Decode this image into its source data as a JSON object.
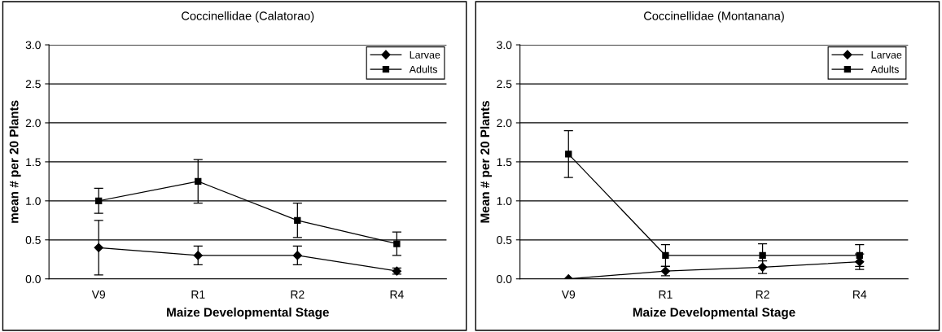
{
  "chart_data": [
    {
      "type": "line",
      "title": "Coccinellidae (Calatorao)",
      "xlabel": "Maize Developmental Stage",
      "ylabel": "mean # per 20 Plants",
      "categories": [
        "V9",
        "R1",
        "R2",
        "R4"
      ],
      "ylim": [
        0,
        3
      ],
      "yticks": [
        {
          "value": 0,
          "label": "0.0"
        },
        {
          "value": 0.5,
          "label": "0.5"
        },
        {
          "value": 1,
          "label": "1.0"
        },
        {
          "value": 1.5,
          "label": "1.5"
        },
        {
          "value": 2,
          "label": "2.0"
        },
        {
          "value": 2.5,
          "label": "2.5"
        },
        {
          "value": 3,
          "label": "3.0"
        }
      ],
      "grid": "y",
      "legend": "top right",
      "series": [
        {
          "name": "Larvae",
          "color": "#000000",
          "marker": "diamond",
          "values": [
            0.4,
            0.3,
            0.3,
            0.1
          ],
          "errors": [
            0.35,
            0.12,
            0.12,
            0.04
          ]
        },
        {
          "name": "Adults",
          "color": "#000000",
          "marker": "square",
          "values": [
            1.0,
            1.25,
            0.75,
            0.45
          ],
          "errors": [
            0.16,
            0.28,
            0.22,
            0.15
          ]
        }
      ]
    },
    {
      "type": "line",
      "title": "Coccinellidae (Montanana)",
      "xlabel": "Maize Developmental Stage",
      "ylabel": "Mean # per 20 Plants",
      "categories": [
        "V9",
        "R1",
        "R2",
        "R4"
      ],
      "ylim": [
        0,
        3
      ],
      "yticks": [
        {
          "value": 0,
          "label": "0.0"
        },
        {
          "value": 0.5,
          "label": "0.5"
        },
        {
          "value": 1,
          "label": "1.0"
        },
        {
          "value": 1.5,
          "label": "1.5"
        },
        {
          "value": 2,
          "label": "2.0"
        },
        {
          "value": 2.5,
          "label": "2.5"
        },
        {
          "value": 3,
          "label": "3.0"
        }
      ],
      "grid": "y",
      "legend": "top right",
      "series": [
        {
          "name": "Larvae",
          "color": "#000000",
          "marker": "diamond",
          "values": [
            0.0,
            0.1,
            0.15,
            0.22
          ],
          "errors": [
            null,
            0.06,
            0.08,
            0.1
          ]
        },
        {
          "name": "Adults",
          "color": "#000000",
          "marker": "square",
          "values": [
            1.6,
            0.3,
            0.3,
            0.3
          ],
          "errors": [
            0.3,
            0.14,
            0.15,
            0.14
          ]
        }
      ]
    }
  ]
}
